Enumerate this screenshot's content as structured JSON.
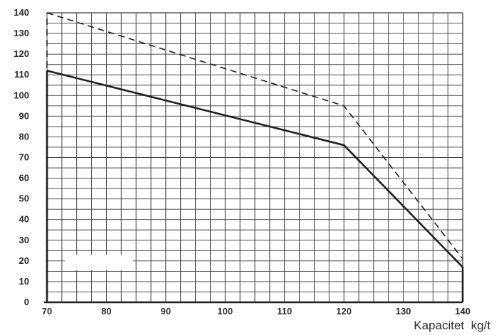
{
  "chart_data": {
    "type": "line",
    "title": "",
    "xlabel": "Kapacitet  kg/t",
    "ylabel": "",
    "xlim": [
      70,
      140
    ],
    "ylim": [
      0,
      140
    ],
    "grid": true,
    "legend": "none",
    "x_ticks": [
      70,
      80,
      90,
      100,
      110,
      120,
      130,
      140
    ],
    "y_ticks": [
      0,
      10,
      20,
      30,
      40,
      50,
      60,
      70,
      80,
      90,
      100,
      110,
      120,
      130,
      140
    ],
    "series": [
      {
        "style": "dashed",
        "x": [
          70,
          120,
          140
        ],
        "y": [
          140,
          95,
          21
        ]
      },
      {
        "style": "solid",
        "x": [
          70,
          120,
          140
        ],
        "y": [
          112,
          76,
          17
        ]
      }
    ],
    "vertical_edges": [
      {
        "x": 70,
        "y_from": 0,
        "y_to": 140,
        "style": "dashed"
      },
      {
        "x": 70,
        "y_from": 0,
        "y_to": 112,
        "style": "solid"
      },
      {
        "x": 140,
        "y_from": 0,
        "y_to": 17,
        "style": "solid"
      }
    ],
    "colors": {
      "grid": "#3a3a3a",
      "line": "#1f1f1f",
      "text": "#2b2b2b"
    }
  }
}
